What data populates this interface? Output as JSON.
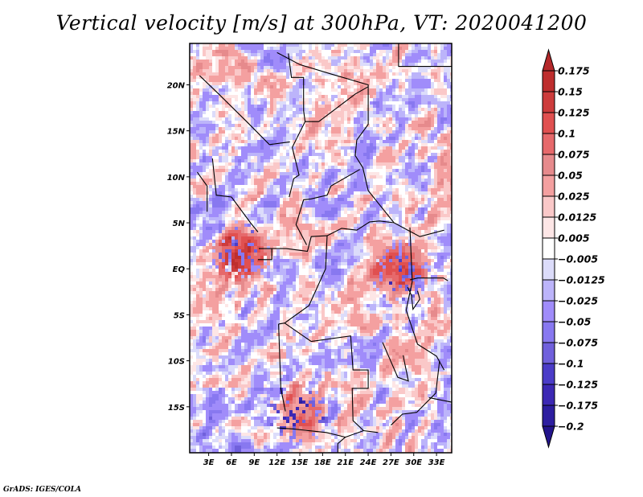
{
  "chart_data": {
    "type": "heatmap",
    "title": "Vertical velocity [m/s] at 300hPa, VT: 2020041200",
    "variable": "Vertical velocity",
    "units": "m/s",
    "level": "300hPa",
    "valid_time": "2020041200",
    "xlabel": "",
    "ylabel": "",
    "x_range_deg": [
      0.5,
      35
    ],
    "y_range_deg": [
      -20,
      24.5
    ],
    "x_ticks": [
      {
        "value": 3,
        "label": "3E"
      },
      {
        "value": 6,
        "label": "6E"
      },
      {
        "value": 9,
        "label": "9E"
      },
      {
        "value": 12,
        "label": "12E"
      },
      {
        "value": 15,
        "label": "15E"
      },
      {
        "value": 18,
        "label": "18E"
      },
      {
        "value": 21,
        "label": "21E"
      },
      {
        "value": 24,
        "label": "24E"
      },
      {
        "value": 27,
        "label": "27E"
      },
      {
        "value": 30,
        "label": "30E"
      },
      {
        "value": 33,
        "label": "33E"
      }
    ],
    "y_ticks": [
      {
        "value": 20,
        "label": "20N"
      },
      {
        "value": 15,
        "label": "15N"
      },
      {
        "value": 10,
        "label": "10N"
      },
      {
        "value": 5,
        "label": "5N"
      },
      {
        "value": 0,
        "label": "EQ"
      },
      {
        "value": -5,
        "label": "5S"
      },
      {
        "value": -10,
        "label": "10S"
      },
      {
        "value": -15,
        "label": "15S"
      }
    ],
    "colorbar": {
      "placement": "right",
      "levels": [
        0.175,
        0.15,
        0.125,
        0.1,
        0.075,
        0.05,
        0.025,
        0.0125,
        0.005,
        -0.005,
        -0.0125,
        -0.025,
        -0.05,
        -0.075,
        -0.1,
        -0.125,
        -0.175,
        -0.2
      ],
      "level_labels": [
        "0.175",
        "0.15",
        "0.125",
        "0.1",
        "0.075",
        "0.05",
        "0.025",
        "0.0125",
        "0.005",
        "−0.005",
        "−0.0125",
        "−0.025",
        "−0.05",
        "−0.075",
        "−0.1",
        "−0.125",
        "−0.175",
        "−0.2"
      ],
      "colors_top_to_bottom": [
        "#b4282a",
        "#be2e2e",
        "#cd3c3c",
        "#e05050",
        "#e6696b",
        "#e68a8c",
        "#f4a0a0",
        "#fac8c8",
        "#fde6e6",
        "#ffffff",
        "#dcdcfa",
        "#bcb4fa",
        "#a08cfa",
        "#8878f0",
        "#7060dc",
        "#4b3cc8",
        "#3c28b4",
        "#2d1ea0",
        "#23148c"
      ],
      "extend": "both"
    },
    "notable_features": [
      {
        "description": "strong upward motion cluster",
        "approx_lon": 28,
        "approx_lat": 0
      },
      {
        "description": "strong upward motion cluster",
        "approx_lon": 7,
        "approx_lat": 2
      },
      {
        "description": "strong upward motion cluster",
        "approx_lon": 14.5,
        "approx_lat": -15.5
      }
    ]
  },
  "footer": {
    "text": "GrADS: IGES/COLA"
  }
}
